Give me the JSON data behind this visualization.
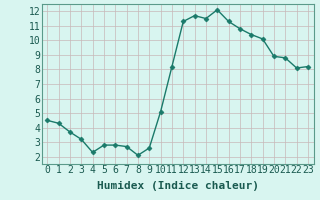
{
  "x": [
    0,
    1,
    2,
    3,
    4,
    5,
    6,
    7,
    8,
    9,
    10,
    11,
    12,
    13,
    14,
    15,
    16,
    17,
    18,
    19,
    20,
    21,
    22,
    23
  ],
  "y": [
    4.5,
    4.3,
    3.7,
    3.2,
    2.3,
    2.8,
    2.8,
    2.7,
    2.1,
    2.6,
    5.1,
    8.2,
    11.3,
    11.7,
    11.5,
    12.1,
    11.3,
    10.8,
    10.4,
    10.1,
    8.9,
    8.8,
    8.1,
    8.2
  ],
  "line_color": "#1a7a6a",
  "marker": "D",
  "marker_size": 2.5,
  "bg_color": "#d8f5f0",
  "grid_color": "#c8b8b8",
  "spine_color": "#5a9a8a",
  "xlabel": "Humidex (Indice chaleur)",
  "ylim": [
    1.5,
    12.5
  ],
  "xlim": [
    -0.5,
    23.5
  ],
  "yticks": [
    2,
    3,
    4,
    5,
    6,
    7,
    8,
    9,
    10,
    11,
    12
  ],
  "xticks": [
    0,
    1,
    2,
    3,
    4,
    5,
    6,
    7,
    8,
    9,
    10,
    11,
    12,
    13,
    14,
    15,
    16,
    17,
    18,
    19,
    20,
    21,
    22,
    23
  ],
  "xlabel_fontsize": 8,
  "tick_fontsize": 7,
  "line_width": 1.0
}
